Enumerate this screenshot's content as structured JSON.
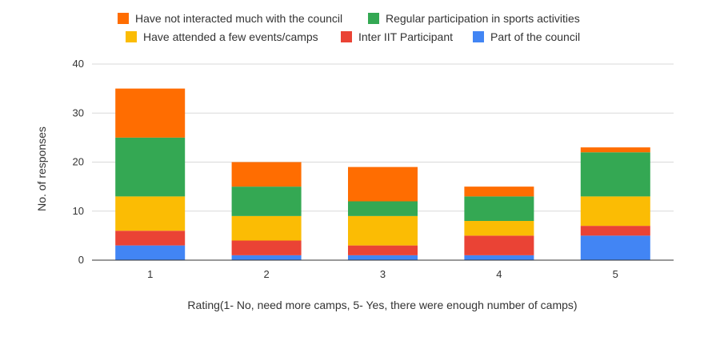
{
  "chart_data": {
    "type": "bar",
    "stacked": true,
    "title": "",
    "xlabel": "Rating(1- No, need more camps, 5- Yes, there were enough number of camps)",
    "ylabel": "No. of responses",
    "categories": [
      "1",
      "2",
      "3",
      "4",
      "5"
    ],
    "ylim": [
      0,
      40
    ],
    "yticks": [
      0,
      10,
      20,
      30,
      40
    ],
    "grid": true,
    "legend_position": "top",
    "series": [
      {
        "name": "Part of the council",
        "color": "#4285F4",
        "values": [
          3,
          1,
          1,
          1,
          5
        ]
      },
      {
        "name": "Inter IIT Participant",
        "color": "#EA4335",
        "values": [
          3,
          3,
          2,
          4,
          2
        ]
      },
      {
        "name": "Have attended a few events/camps",
        "color": "#FBBC04",
        "values": [
          7,
          5,
          6,
          3,
          6
        ]
      },
      {
        "name": "Regular participation in sports activities",
        "color": "#34A853",
        "values": [
          12,
          6,
          3,
          5,
          9
        ]
      },
      {
        "name": "Have not interacted much with the council",
        "color": "#FF6D01",
        "values": [
          10,
          5,
          7,
          2,
          1
        ]
      }
    ]
  }
}
